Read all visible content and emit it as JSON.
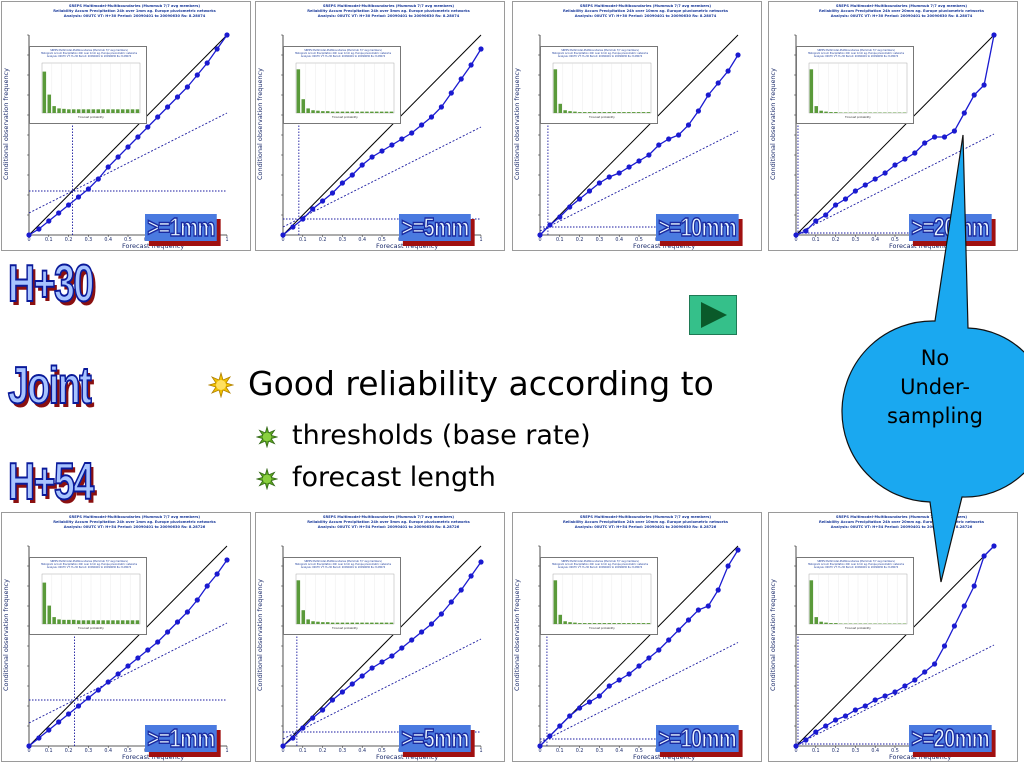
{
  "panel_header": {
    "line1": "SREPS Multimodel-Multiboundaries  (Mummub 7/7 avg members)",
    "line2_h30": [
      "Reliability  Accum Precipitation 24h over 1mm  ag. Europe pluviometric networks",
      "Reliability  Accum Precipitation 24h over 5mm  ag. Europe pluviometric networks",
      "Reliability  Accum Precipitation 24h over 10mm  ag. Europe pluviometric networks",
      "Reliability  Accum Precipitation 24h over 20mm  ag. Europe pluviometric networks"
    ],
    "line3_h30": "Analysis: 00UTC  VT: H+30   Period: 20090401 to 20090630   Rs: 8.28074",
    "line3_h54": "Analysis: 00UTC  VT: H+54   Period: 20090401 to 20090630   Rs: 8.28726"
  },
  "inset_header": {
    "line1": "SREPS Multimodel-Multiboundaries (Mummub 7/7 avg members)",
    "line2": "Histogram  Accum Precipitation 24h over 1mm  ag. Europe pluviometric networks",
    "line3": "Analysis: 00UTC  VT: H+30   Period: 20090401 to 20090630   Rs: 8.28074",
    "xlabel": "Forecast probability"
  },
  "axis": {
    "ylabel": "Conditional observation frequency",
    "xlabel": "Forecast frequency",
    "xticks": [
      "0",
      "0.1",
      "0.2",
      "0.3",
      "0.4",
      "0.5",
      "0.6",
      "0.7",
      "0.8",
      "0.9",
      "1"
    ]
  },
  "panels": [
    {
      "id": "h30-1mm",
      "threshold": ">=1mm"
    },
    {
      "id": "h30-5mm",
      "threshold": ">=5mm"
    },
    {
      "id": "h30-10mm",
      "threshold": ">=10mm"
    },
    {
      "id": "h30-20mm",
      "threshold": ">=20mm"
    },
    {
      "id": "h54-1mm",
      "threshold": ">=1mm"
    },
    {
      "id": "h54-5mm",
      "threshold": ">=5mm"
    },
    {
      "id": "h54-10mm",
      "threshold": ">=10mm"
    },
    {
      "id": "h54-20mm",
      "threshold": ">=20mm"
    }
  ],
  "left_labels": {
    "top": "H+30",
    "middle": "Joint",
    "bottom": "H+54"
  },
  "bullets": {
    "main": "Good reliability according to",
    "sub": [
      "thresholds (base rate)",
      "forecast length"
    ]
  },
  "callout": {
    "lines": [
      "No",
      "Under-",
      "sampling"
    ]
  },
  "colors": {
    "series": "#1a1ad0",
    "diagonal": "#000000",
    "histogram": "#5a9a3a",
    "callout_fill": "#1aa8f0",
    "badge_fill": "#4a7ae0",
    "badge_shadow": "#a01010",
    "play_button": "#35c08a"
  },
  "chart_data": [
    {
      "type": "line",
      "name": "H+30 >=1mm",
      "xlim": [
        0,
        1
      ],
      "ylim": [
        0,
        1
      ],
      "x": [
        0,
        0.05,
        0.1,
        0.15,
        0.2,
        0.25,
        0.3,
        0.35,
        0.4,
        0.45,
        0.5,
        0.55,
        0.6,
        0.65,
        0.7,
        0.75,
        0.8,
        0.85,
        0.9,
        0.95,
        1.0
      ],
      "y": [
        0.0,
        0.03,
        0.07,
        0.11,
        0.15,
        0.19,
        0.23,
        0.28,
        0.34,
        0.39,
        0.44,
        0.49,
        0.54,
        0.59,
        0.64,
        0.69,
        0.74,
        0.8,
        0.86,
        0.93,
        1.0
      ],
      "base_rate": 0.22,
      "histogram": [
        0.9,
        0.4,
        0.15,
        0.1,
        0.09,
        0.08,
        0.08,
        0.08,
        0.08,
        0.08,
        0.08,
        0.08,
        0.08,
        0.08,
        0.08,
        0.08,
        0.08,
        0.08,
        0.08,
        0.08
      ]
    },
    {
      "type": "line",
      "name": "H+30 >=5mm",
      "xlim": [
        0,
        1
      ],
      "ylim": [
        0,
        1
      ],
      "x": [
        0,
        0.05,
        0.1,
        0.15,
        0.2,
        0.25,
        0.3,
        0.35,
        0.4,
        0.45,
        0.5,
        0.55,
        0.6,
        0.65,
        0.7,
        0.75,
        0.8,
        0.85,
        0.9,
        0.95,
        1.0
      ],
      "y": [
        0.0,
        0.04,
        0.08,
        0.13,
        0.17,
        0.21,
        0.26,
        0.3,
        0.35,
        0.39,
        0.42,
        0.45,
        0.48,
        0.51,
        0.55,
        0.59,
        0.64,
        0.71,
        0.78,
        0.85,
        0.93
      ],
      "base_rate": 0.08,
      "histogram": [
        0.95,
        0.3,
        0.1,
        0.06,
        0.05,
        0.04,
        0.04,
        0.03,
        0.03,
        0.03,
        0.03,
        0.03,
        0.03,
        0.03,
        0.03,
        0.03,
        0.03,
        0.03,
        0.03,
        0.03
      ]
    },
    {
      "type": "line",
      "name": "H+30 >=10mm",
      "xlim": [
        0,
        1
      ],
      "ylim": [
        0,
        1
      ],
      "x": [
        0,
        0.05,
        0.1,
        0.15,
        0.2,
        0.25,
        0.3,
        0.35,
        0.4,
        0.45,
        0.5,
        0.55,
        0.6,
        0.65,
        0.7,
        0.75,
        0.8,
        0.85,
        0.9,
        0.95,
        1.0
      ],
      "y": [
        0.0,
        0.05,
        0.09,
        0.14,
        0.18,
        0.22,
        0.26,
        0.29,
        0.31,
        0.34,
        0.37,
        0.4,
        0.45,
        0.48,
        0.5,
        0.55,
        0.62,
        0.7,
        0.76,
        0.82,
        0.9
      ],
      "base_rate": 0.04,
      "histogram": [
        0.95,
        0.2,
        0.06,
        0.04,
        0.03,
        0.02,
        0.02,
        0.02,
        0.02,
        0.02,
        0.02,
        0.02,
        0.02,
        0.02,
        0.02,
        0.02,
        0.02,
        0.02,
        0.02,
        0.02
      ]
    },
    {
      "type": "line",
      "name": "H+30 >=20mm",
      "xlim": [
        0,
        1
      ],
      "ylim": [
        0,
        1
      ],
      "x": [
        0,
        0.05,
        0.1,
        0.15,
        0.2,
        0.25,
        0.3,
        0.35,
        0.4,
        0.45,
        0.5,
        0.55,
        0.6,
        0.65,
        0.7,
        0.75,
        0.8,
        0.85,
        0.9,
        0.95,
        1.0
      ],
      "y": [
        0.0,
        0.02,
        0.07,
        0.1,
        0.15,
        0.18,
        0.22,
        0.25,
        0.28,
        0.31,
        0.35,
        0.38,
        0.41,
        0.46,
        0.49,
        0.49,
        0.52,
        0.61,
        0.7,
        0.75,
        1.0
      ],
      "base_rate": 0.01,
      "histogram": [
        0.95,
        0.15,
        0.05,
        0.03,
        0.02,
        0.02,
        0.01,
        0.01,
        0.01,
        0.01,
        0.01,
        0.01,
        0.01,
        0.01,
        0.01,
        0.01,
        0.01,
        0.01,
        0.01,
        0.01
      ]
    },
    {
      "type": "line",
      "name": "H+54 >=1mm",
      "xlim": [
        0,
        1
      ],
      "ylim": [
        0,
        1
      ],
      "x": [
        0,
        0.05,
        0.1,
        0.15,
        0.2,
        0.25,
        0.3,
        0.35,
        0.4,
        0.45,
        0.5,
        0.55,
        0.6,
        0.65,
        0.7,
        0.75,
        0.8,
        0.85,
        0.9,
        0.95,
        1.0
      ],
      "y": [
        0.0,
        0.04,
        0.08,
        0.12,
        0.16,
        0.2,
        0.24,
        0.28,
        0.32,
        0.36,
        0.4,
        0.44,
        0.48,
        0.52,
        0.57,
        0.62,
        0.67,
        0.73,
        0.8,
        0.86,
        0.93
      ],
      "base_rate": 0.23,
      "histogram": [
        0.9,
        0.4,
        0.15,
        0.1,
        0.09,
        0.09,
        0.09,
        0.08,
        0.08,
        0.08,
        0.08,
        0.08,
        0.08,
        0.08,
        0.08,
        0.08,
        0.08,
        0.08,
        0.08,
        0.08
      ]
    },
    {
      "type": "line",
      "name": "H+54 >=5mm",
      "xlim": [
        0,
        1
      ],
      "ylim": [
        0,
        1
      ],
      "x": [
        0,
        0.05,
        0.1,
        0.15,
        0.2,
        0.25,
        0.3,
        0.35,
        0.4,
        0.45,
        0.5,
        0.55,
        0.6,
        0.65,
        0.7,
        0.75,
        0.8,
        0.85,
        0.9,
        0.95,
        1.0
      ],
      "y": [
        0.0,
        0.04,
        0.09,
        0.14,
        0.18,
        0.23,
        0.27,
        0.31,
        0.35,
        0.39,
        0.42,
        0.45,
        0.49,
        0.53,
        0.57,
        0.61,
        0.66,
        0.72,
        0.78,
        0.85,
        0.92
      ],
      "base_rate": 0.07,
      "histogram": [
        0.95,
        0.3,
        0.1,
        0.06,
        0.05,
        0.04,
        0.04,
        0.03,
        0.03,
        0.03,
        0.03,
        0.03,
        0.03,
        0.03,
        0.03,
        0.03,
        0.03,
        0.03,
        0.03,
        0.03
      ]
    },
    {
      "type": "line",
      "name": "H+54 >=10mm",
      "xlim": [
        0,
        1
      ],
      "ylim": [
        0,
        1
      ],
      "x": [
        0,
        0.05,
        0.1,
        0.15,
        0.2,
        0.25,
        0.3,
        0.35,
        0.4,
        0.45,
        0.5,
        0.55,
        0.6,
        0.65,
        0.7,
        0.75,
        0.8,
        0.85,
        0.9,
        0.95,
        1.0
      ],
      "y": [
        0.0,
        0.05,
        0.1,
        0.15,
        0.19,
        0.22,
        0.25,
        0.3,
        0.33,
        0.36,
        0.4,
        0.44,
        0.48,
        0.53,
        0.58,
        0.63,
        0.68,
        0.7,
        0.78,
        0.9,
        0.98
      ],
      "base_rate": 0.035,
      "histogram": [
        0.95,
        0.2,
        0.06,
        0.04,
        0.03,
        0.02,
        0.02,
        0.02,
        0.02,
        0.02,
        0.02,
        0.02,
        0.02,
        0.02,
        0.02,
        0.02,
        0.02,
        0.02,
        0.02,
        0.02
      ]
    },
    {
      "type": "line",
      "name": "H+54 >=20mm",
      "xlim": [
        0,
        1
      ],
      "ylim": [
        0,
        1
      ],
      "x": [
        0,
        0.05,
        0.1,
        0.15,
        0.2,
        0.25,
        0.3,
        0.35,
        0.4,
        0.45,
        0.5,
        0.55,
        0.6,
        0.65,
        0.7,
        0.75,
        0.8,
        0.85,
        0.9,
        0.95,
        1.0
      ],
      "y": [
        0.0,
        0.03,
        0.07,
        0.1,
        0.13,
        0.15,
        0.18,
        0.2,
        0.23,
        0.25,
        0.27,
        0.3,
        0.33,
        0.37,
        0.41,
        0.5,
        0.6,
        0.7,
        0.8,
        0.95,
        1.0
      ],
      "base_rate": 0.01,
      "histogram": [
        0.95,
        0.15,
        0.05,
        0.03,
        0.02,
        0.02,
        0.01,
        0.01,
        0.01,
        0.01,
        0.01,
        0.01,
        0.01,
        0.01,
        0.01,
        0.01,
        0.01,
        0.01,
        0.01,
        0.01
      ]
    }
  ]
}
